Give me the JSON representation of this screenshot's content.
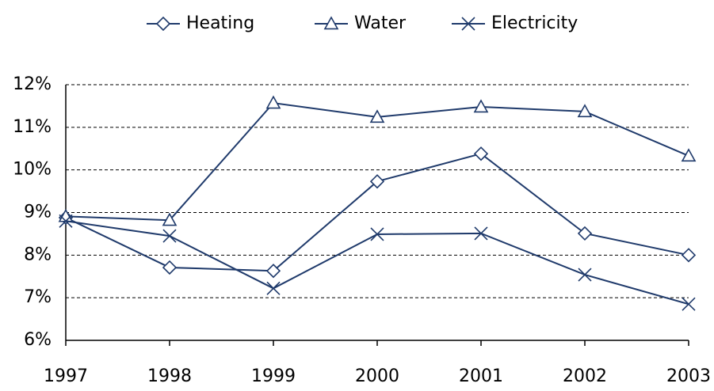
{
  "chart_data": {
    "type": "line",
    "categories": [
      "1997",
      "1998",
      "1999",
      "2000",
      "2001",
      "2002",
      "2003"
    ],
    "series": [
      {
        "name": "Heating",
        "color": "#1f3a6b",
        "marker": "diamond",
        "values": [
          8.88,
          7.71,
          7.63,
          9.73,
          10.38,
          8.51,
          8.0
        ]
      },
      {
        "name": "Water",
        "color": "#1f3a6b",
        "marker": "triangle",
        "values": [
          8.91,
          8.82,
          11.57,
          11.24,
          11.48,
          11.37,
          10.33
        ]
      },
      {
        "name": "Electricity",
        "color": "#1f3a6b",
        "marker": "x",
        "values": [
          8.8,
          8.45,
          7.22,
          8.49,
          8.51,
          7.54,
          6.85
        ]
      }
    ],
    "ylim": [
      6,
      12
    ],
    "yticks": [
      {
        "value": 6,
        "label": "6%"
      },
      {
        "value": 7,
        "label": "7%"
      },
      {
        "value": 8,
        "label": "8%"
      },
      {
        "value": 9,
        "label": "9%"
      },
      {
        "value": 10,
        "label": "10%"
      },
      {
        "value": 11,
        "label": "11%"
      },
      {
        "value": 12,
        "label": "12%"
      }
    ],
    "grid": true,
    "legend": "top"
  }
}
